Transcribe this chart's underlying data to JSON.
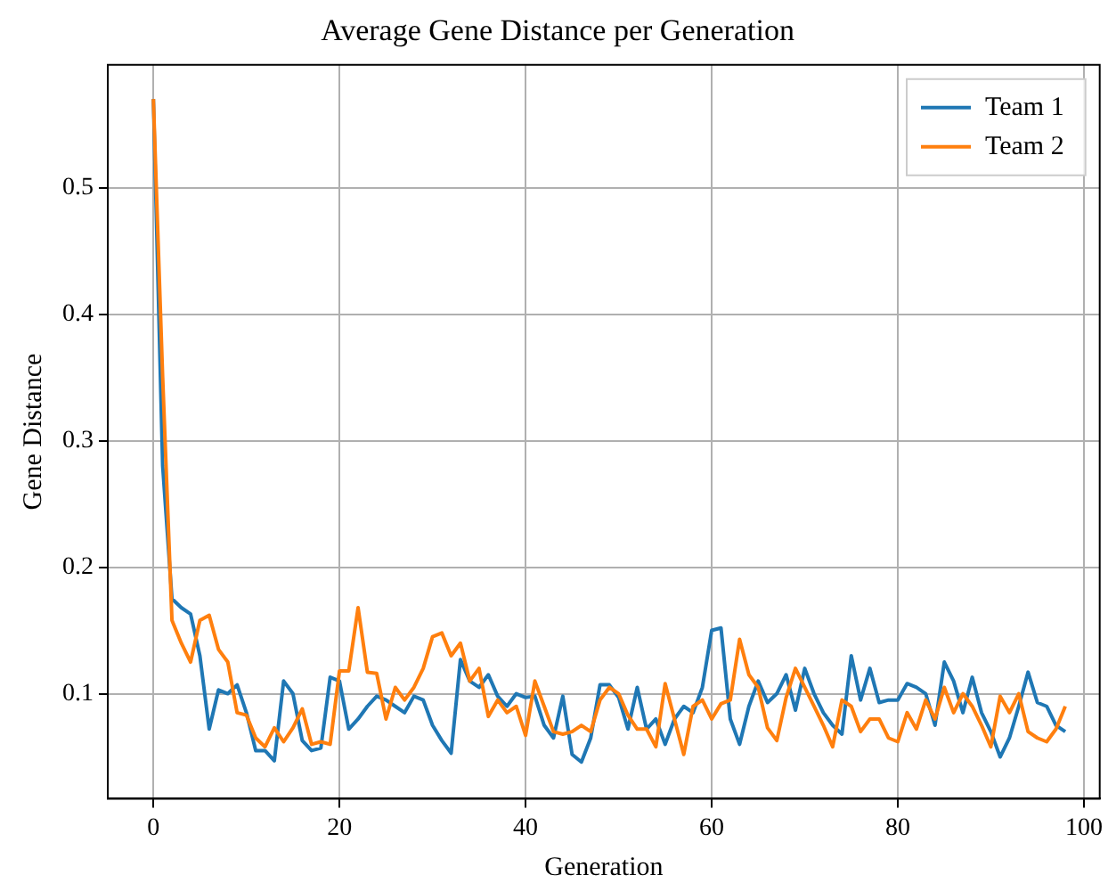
{
  "chart_data": {
    "type": "line",
    "title": "Average Gene Distance per Generation",
    "xlabel": "Generation",
    "ylabel": "Gene Distance",
    "x": [
      0,
      1,
      2,
      3,
      4,
      5,
      6,
      7,
      8,
      9,
      10,
      11,
      12,
      13,
      14,
      15,
      16,
      17,
      18,
      19,
      20,
      21,
      22,
      23,
      24,
      25,
      26,
      27,
      28,
      29,
      30,
      31,
      32,
      33,
      34,
      35,
      36,
      37,
      38,
      39,
      40,
      41,
      42,
      43,
      44,
      45,
      46,
      47,
      48,
      49,
      50,
      51,
      52,
      53,
      54,
      55,
      56,
      57,
      58,
      59,
      60,
      61,
      62,
      63,
      64,
      65,
      66,
      67,
      68,
      69,
      70,
      71,
      72,
      73,
      74,
      75,
      76,
      77,
      78,
      79,
      80,
      81,
      82,
      83,
      84,
      85,
      86,
      87,
      88,
      89,
      90,
      91,
      92,
      93,
      94,
      95,
      96,
      97,
      98
    ],
    "series": [
      {
        "name": "Team 1",
        "color": "#1f77b4",
        "values": [
          0.57,
          0.28,
          0.175,
          0.168,
          0.163,
          0.13,
          0.072,
          0.103,
          0.1,
          0.107,
          0.085,
          0.055,
          0.055,
          0.047,
          0.11,
          0.1,
          0.063,
          0.055,
          0.057,
          0.113,
          0.11,
          0.072,
          0.08,
          0.09,
          0.098,
          0.095,
          0.09,
          0.085,
          0.098,
          0.095,
          0.075,
          0.063,
          0.053,
          0.127,
          0.11,
          0.105,
          0.115,
          0.098,
          0.09,
          0.1,
          0.097,
          0.098,
          0.075,
          0.065,
          0.098,
          0.052,
          0.046,
          0.065,
          0.107,
          0.107,
          0.097,
          0.072,
          0.105,
          0.072,
          0.08,
          0.06,
          0.08,
          0.09,
          0.085,
          0.105,
          0.15,
          0.152,
          0.08,
          0.06,
          0.09,
          0.11,
          0.093,
          0.1,
          0.115,
          0.087,
          0.12,
          0.1,
          0.085,
          0.075,
          0.068,
          0.13,
          0.095,
          0.12,
          0.093,
          0.095,
          0.095,
          0.108,
          0.105,
          0.1,
          0.075,
          0.125,
          0.11,
          0.085,
          0.113,
          0.085,
          0.07,
          0.05,
          0.065,
          0.09,
          0.117,
          0.093,
          0.09,
          0.075,
          0.07
        ]
      },
      {
        "name": "Team 2",
        "color": "#ff7f0e",
        "values": [
          0.57,
          0.35,
          0.158,
          0.14,
          0.125,
          0.158,
          0.162,
          0.135,
          0.125,
          0.085,
          0.083,
          0.065,
          0.058,
          0.073,
          0.062,
          0.073,
          0.088,
          0.06,
          0.062,
          0.06,
          0.118,
          0.118,
          0.168,
          0.117,
          0.116,
          0.08,
          0.105,
          0.095,
          0.105,
          0.12,
          0.145,
          0.148,
          0.13,
          0.14,
          0.11,
          0.12,
          0.082,
          0.095,
          0.085,
          0.09,
          0.067,
          0.11,
          0.09,
          0.07,
          0.068,
          0.07,
          0.075,
          0.07,
          0.095,
          0.105,
          0.1,
          0.083,
          0.072,
          0.072,
          0.058,
          0.108,
          0.08,
          0.052,
          0.09,
          0.095,
          0.08,
          0.092,
          0.095,
          0.143,
          0.115,
          0.105,
          0.073,
          0.063,
          0.097,
          0.12,
          0.105,
          0.09,
          0.075,
          0.058,
          0.095,
          0.09,
          0.07,
          0.08,
          0.08,
          0.065,
          0.062,
          0.085,
          0.072,
          0.095,
          0.08,
          0.105,
          0.085,
          0.1,
          0.09,
          0.075,
          0.058,
          0.098,
          0.085,
          0.1,
          0.07,
          0.065,
          0.062,
          0.072,
          0.09
        ]
      }
    ],
    "xlim": [
      -4.9,
      101.7
    ],
    "xticks": [
      0,
      20,
      40,
      60,
      80,
      100
    ],
    "ylim": [
      0.017,
      0.597
    ],
    "yticks": [
      0.1,
      0.2,
      0.3,
      0.4,
      0.5
    ],
    "grid": true,
    "legend": "top right",
    "marker": "none",
    "line_style": "solid"
  }
}
